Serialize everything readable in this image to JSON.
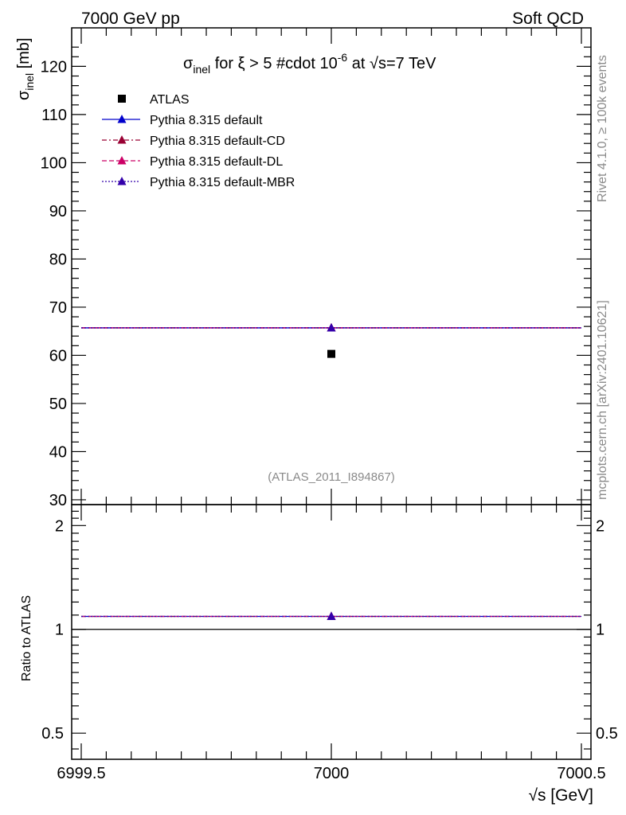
{
  "header": {
    "left": "7000 GeV pp",
    "right": "Soft QCD"
  },
  "title": {
    "sigma": "σ",
    "sub": "inel",
    "rest": " for ξ > 5 #cdot 10",
    "exp": "-6",
    "tail": " at √s=7 TeV"
  },
  "side_labels": {
    "rivet": "Rivet 4.1.0, ≥ 100k events",
    "mcplots": "mcplots.cern.ch [arXiv:2401.10621]"
  },
  "analysis_id": "(ATLAS_2011_I894867)",
  "colors": {
    "atlas": "#000000",
    "default": "#0000cc",
    "default_cd": "#990033",
    "default_dl": "#cc0066",
    "default_mbr": "#3300aa"
  },
  "chart_data": [
    {
      "type": "scatter",
      "panel": "main",
      "ylabel_sym": "σ",
      "ylabel_sub": "inel",
      "ylabel_unit": " [mb]",
      "xlim": [
        6999.5,
        7000.5
      ],
      "ylim": [
        29,
        128
      ],
      "yticks": [
        "30",
        "40",
        "50",
        "60",
        "70",
        "80",
        "90",
        "100",
        "110",
        "120"
      ],
      "yticks_values": [
        30,
        40,
        50,
        60,
        70,
        80,
        90,
        100,
        110,
        120
      ],
      "legend_position": "top-left",
      "series": [
        {
          "name": "ATLAS",
          "x": [
            7000
          ],
          "y": [
            60.3
          ],
          "marker": "square"
        },
        {
          "name": "Pythia 8.315 default",
          "x": [
            7000
          ],
          "y": [
            65.7
          ],
          "line": "solid",
          "marker": "triangle"
        },
        {
          "name": "Pythia 8.315 default-CD",
          "x": [
            7000
          ],
          "y": [
            65.7
          ],
          "line": "dashdot",
          "marker": "triangle"
        },
        {
          "name": "Pythia 8.315 default-DL",
          "x": [
            7000
          ],
          "y": [
            65.7
          ],
          "line": "dashed",
          "marker": "triangle"
        },
        {
          "name": "Pythia 8.315 default-MBR",
          "x": [
            7000
          ],
          "y": [
            65.7
          ],
          "line": "dotted",
          "marker": "triangle"
        }
      ]
    },
    {
      "type": "line",
      "panel": "ratio",
      "ylabel": "Ratio to ATLAS",
      "xlabel": "√s [GeV]",
      "xlim": [
        6999.5,
        7000.5
      ],
      "xticks": [
        "6999.5",
        "7000",
        "7000.5"
      ],
      "xticks_values": [
        6999.5,
        7000,
        7000.5
      ],
      "ylim": [
        0.42,
        2.3
      ],
      "log_y": true,
      "yticks": [
        "0.5",
        "1",
        "2"
      ],
      "yticks_values": [
        0.5,
        1,
        2
      ],
      "reference": 1,
      "series": [
        {
          "name": "Pythia 8.315 default",
          "x": [
            7000
          ],
          "y": [
            1.09
          ]
        },
        {
          "name": "Pythia 8.315 default-CD",
          "x": [
            7000
          ],
          "y": [
            1.09
          ]
        },
        {
          "name": "Pythia 8.315 default-DL",
          "x": [
            7000
          ],
          "y": [
            1.09
          ]
        },
        {
          "name": "Pythia 8.315 default-MBR",
          "x": [
            7000
          ],
          "y": [
            1.09
          ]
        }
      ]
    }
  ]
}
